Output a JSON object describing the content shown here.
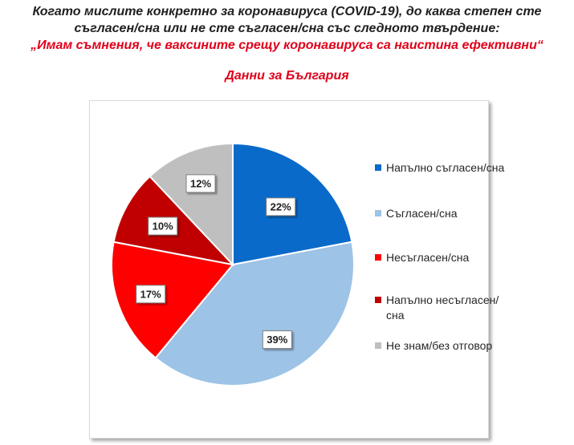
{
  "header": {
    "line1": "Когато мислите конкретно за коронавируса (COVID-19), до каква степен сте",
    "line2": "съгласен/сна или не сте съгласен/сна със следното твърдение:",
    "line3": "„Имам съмнения, че ваксините срещу коронавируса са наистина ефективни“",
    "subtitle": "Данни за България"
  },
  "chart_data": {
    "type": "pie",
    "categories": [
      "Напълно съгласен/сна",
      "Съгласен/сна",
      "Несъгласен/сна",
      "Напълно несъгласен/сна",
      "Не знам/без отговор"
    ],
    "values": [
      22,
      39,
      17,
      10,
      12
    ],
    "labels": [
      "22%",
      "39%",
      "17%",
      "10%",
      "12%"
    ],
    "colors": [
      "#0a6ac9",
      "#9dc3e6",
      "#ff0000",
      "#c00000",
      "#bfbfbf"
    ],
    "start": "12 o'clock, clockwise",
    "legend_position": "right"
  }
}
